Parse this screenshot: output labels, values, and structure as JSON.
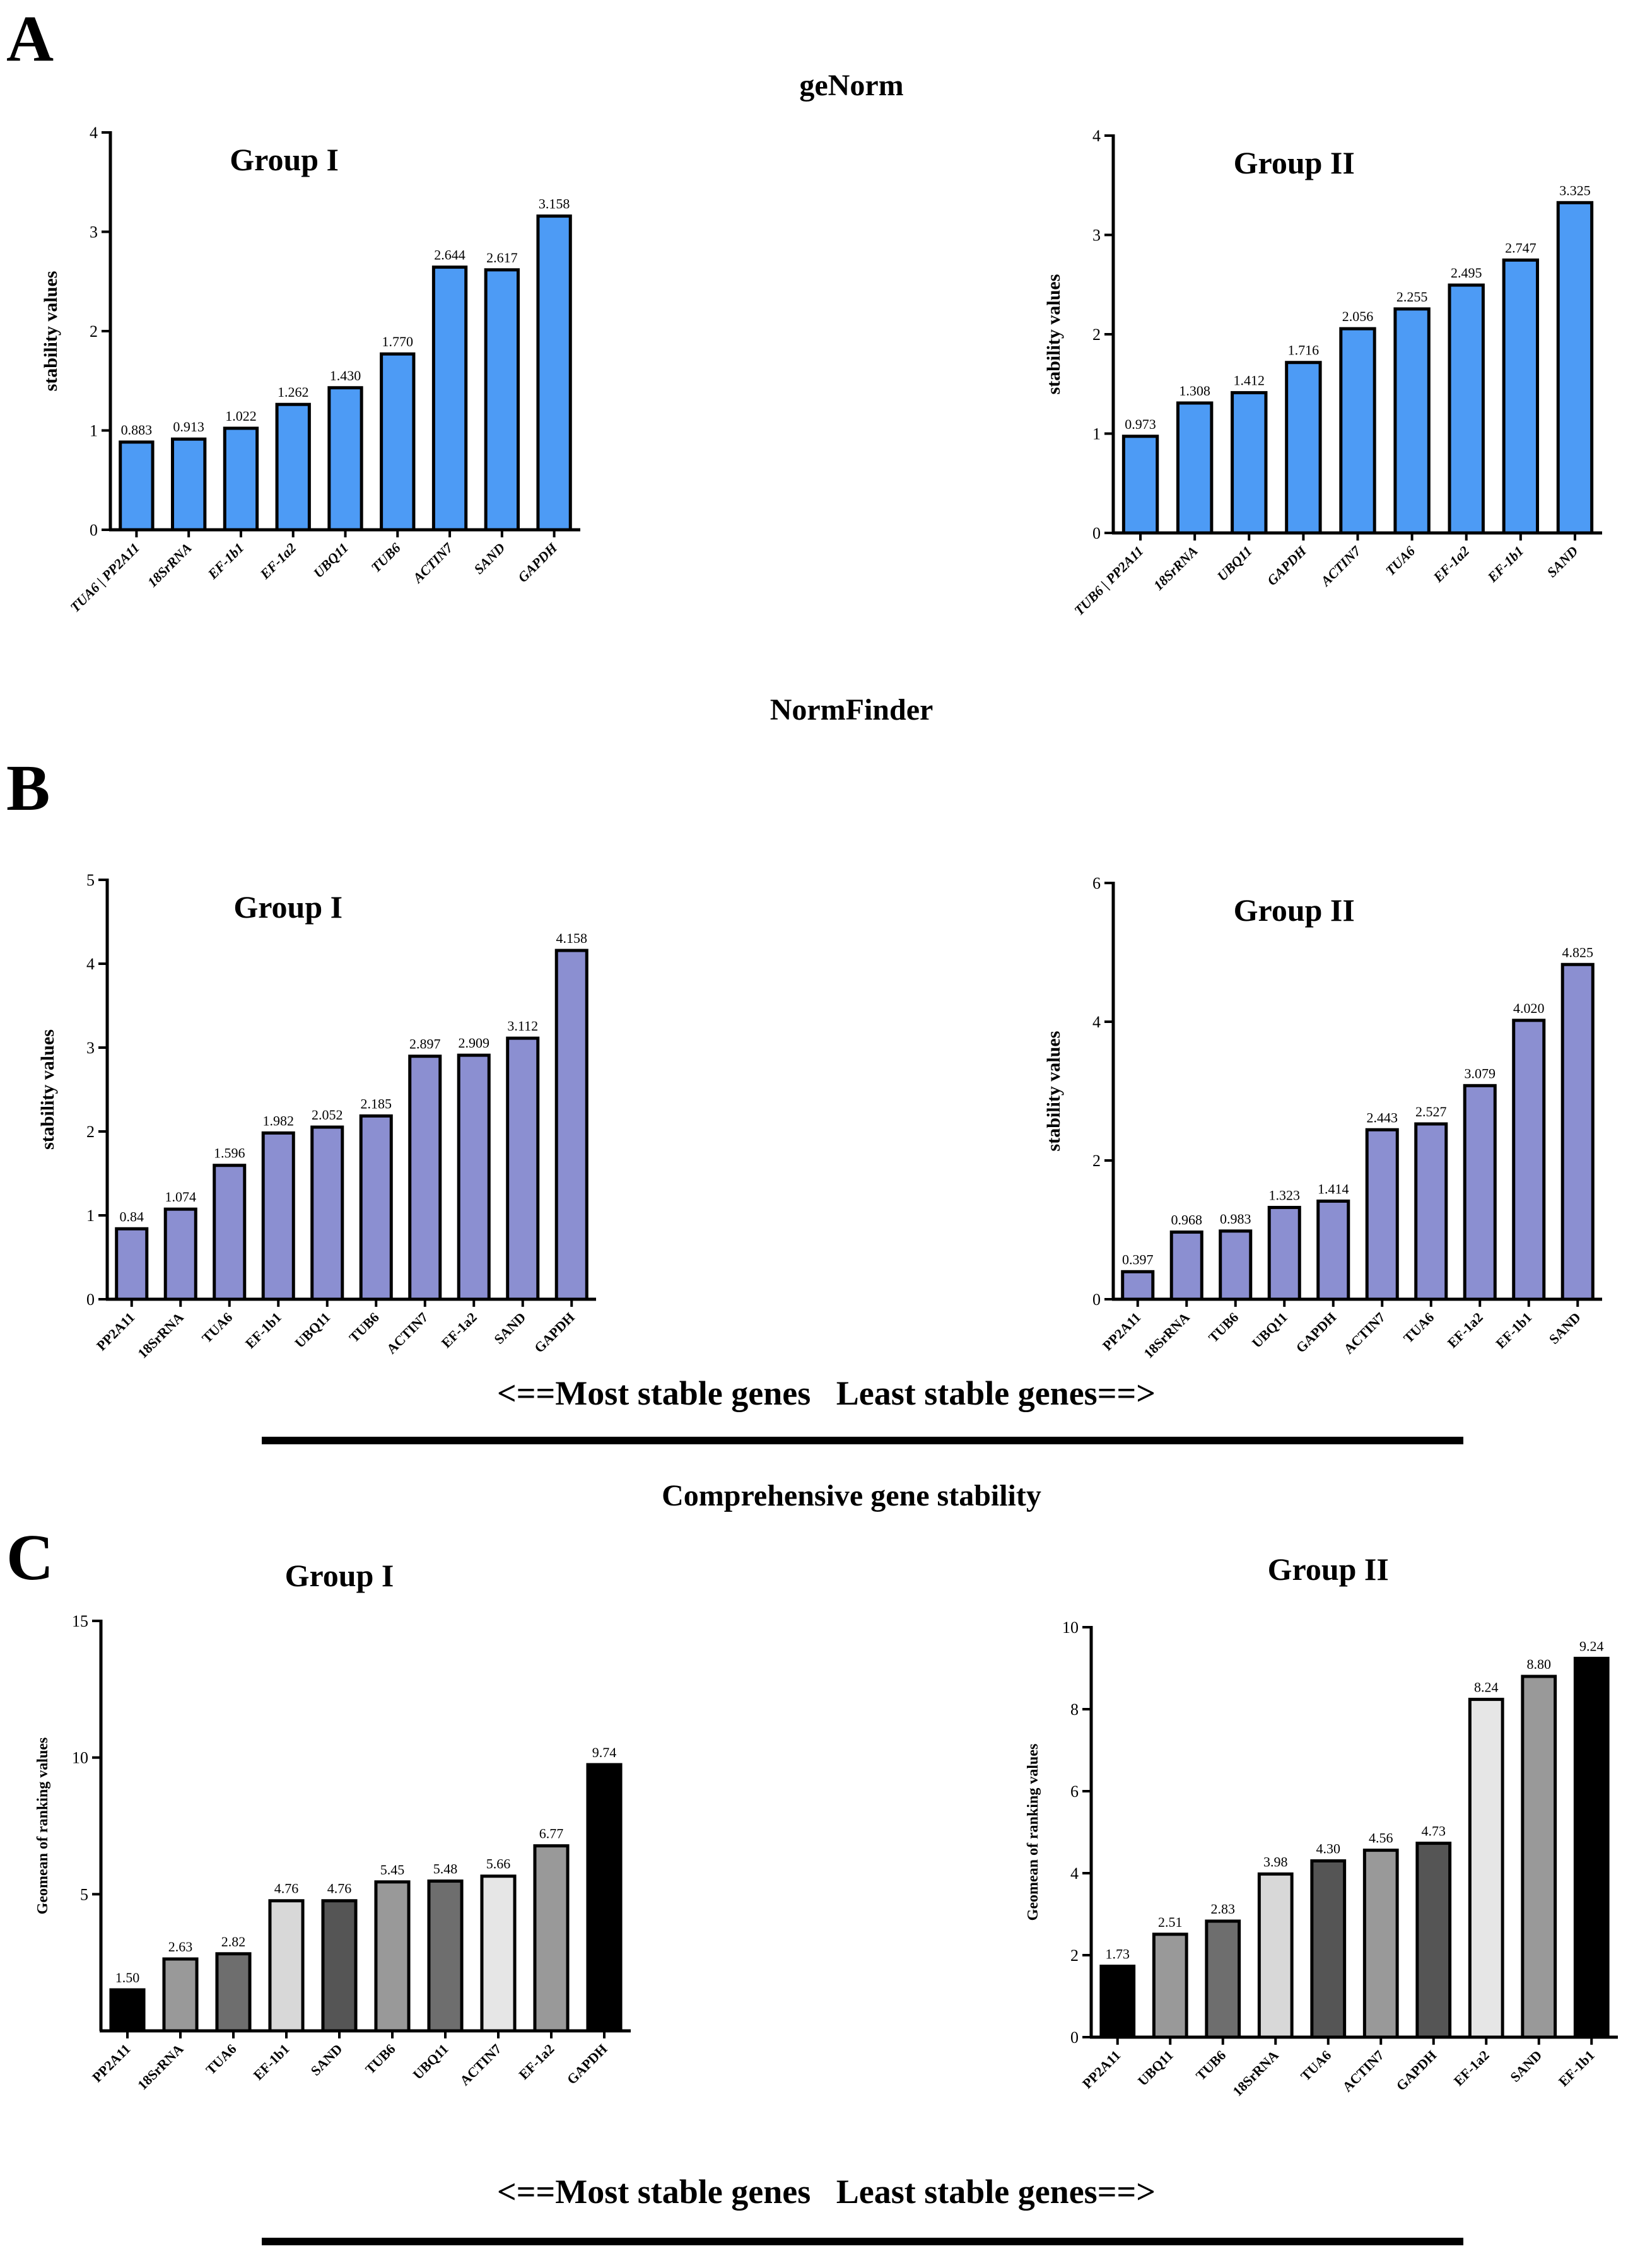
{
  "panels": {
    "A": {
      "letter": "A",
      "title": "geNorm"
    },
    "B": {
      "letter": "B",
      "title": "NormFinder"
    },
    "C": {
      "letter": "C",
      "title": "Comprehensive gene stability"
    }
  },
  "footer": {
    "stability_direction_1": "<==Most stable genes   Least stable genes==>",
    "stability_direction_2": "<==Most stable genes   Least stable genes==>"
  },
  "colors": {
    "genorm_bar": "#4d9bf5",
    "normfinder_bar": "#8b8fd1",
    "axis": "#000000"
  },
  "chart_data": [
    {
      "id": "A1",
      "type": "bar",
      "title": "Group I",
      "ylabel": "stability values",
      "xlabel": "",
      "ylim": [
        0,
        4
      ],
      "yticks": [
        0,
        1,
        2,
        3,
        4
      ],
      "italic_categories": true,
      "categories": [
        "TUA6 | PP2A11",
        "18SrRNA",
        "EF-1b1",
        "EF-1a2",
        "UBQ11",
        "TUB6",
        "ACTIN7",
        "SAND",
        "GAPDH"
      ],
      "values": [
        0.883,
        0.913,
        1.022,
        1.262,
        1.43,
        1.77,
        2.644,
        2.617,
        3.158
      ],
      "value_labels": [
        "0.883",
        "0.913",
        "1.022",
        "1.262",
        "1.430",
        "1.770",
        "2.644",
        "2.617",
        "3.158"
      ],
      "bar_colors": [
        "#4d9bf5"
      ]
    },
    {
      "id": "A2",
      "type": "bar",
      "title": "Group II",
      "ylabel": "stability values",
      "xlabel": "",
      "ylim": [
        0,
        4
      ],
      "yticks": [
        0,
        1,
        2,
        3,
        4
      ],
      "italic_categories": true,
      "categories": [
        "TUB6 | PP2A11",
        "18SrRNA",
        "UBQ11",
        "GAPDH",
        "ACTIN7",
        "TUA6",
        "EF-1a2",
        "EF-1b1",
        "SAND"
      ],
      "values": [
        0.973,
        1.308,
        1.412,
        1.716,
        2.056,
        2.255,
        2.495,
        2.747,
        3.325
      ],
      "value_labels": [
        "0.973",
        "1.308",
        "1.412",
        "1.716",
        "2.056",
        "2.255",
        "2.495",
        "2.747",
        "3.325"
      ],
      "bar_colors": [
        "#4d9bf5"
      ]
    },
    {
      "id": "B1",
      "type": "bar",
      "title": "Group I",
      "ylabel": "stability values",
      "xlabel": "",
      "ylim": [
        0,
        5
      ],
      "yticks": [
        0,
        1,
        2,
        3,
        4,
        5
      ],
      "italic_categories": false,
      "categories": [
        "PP2A11",
        "18SrRNA",
        "TUA6",
        "EF-1b1",
        "UBQ11",
        "TUB6",
        "ACTIN7",
        "EF-1a2",
        "SAND",
        "GAPDH"
      ],
      "values": [
        0.84,
        1.074,
        1.596,
        1.982,
        2.052,
        2.185,
        2.897,
        2.909,
        3.112,
        4.158
      ],
      "value_labels": [
        "0.84",
        "1.074",
        "1.596",
        "1.982",
        "2.052",
        "2.185",
        "2.897",
        "2.909",
        "3.112",
        "4.158"
      ],
      "bar_colors": [
        "#8b8fd1"
      ]
    },
    {
      "id": "B2",
      "type": "bar",
      "title": "Group II",
      "ylabel": "stability values",
      "xlabel": "",
      "ylim": [
        0,
        6
      ],
      "yticks": [
        0,
        2,
        4,
        6
      ],
      "italic_categories": false,
      "categories": [
        "PP2A11",
        "18SrRNA",
        "TUB6",
        "UBQ11",
        "GAPDH",
        "ACTIN7",
        "TUA6",
        "EF-1a2",
        "EF-1b1",
        "SAND"
      ],
      "values": [
        0.397,
        0.968,
        0.983,
        1.323,
        1.414,
        2.443,
        2.527,
        3.079,
        4.02,
        4.825
      ],
      "value_labels": [
        "0.397",
        "0.968",
        "0.983",
        "1.323",
        "1.414",
        "2.443",
        "2.527",
        "3.079",
        "4.020",
        "4.825"
      ],
      "bar_colors": [
        "#8b8fd1"
      ]
    },
    {
      "id": "C1",
      "type": "bar",
      "title": "Group I",
      "ylabel": "Geomean of ranking values",
      "xlabel": "",
      "ylim": [
        0,
        15
      ],
      "yticks": [
        5,
        10,
        15
      ],
      "italic_categories": false,
      "categories": [
        "PP2A11",
        "18SrRNA",
        "TUA6",
        "EF-1b1",
        "SAND",
        "TUB6",
        "UBQ11",
        "ACTIN7",
        "EF-1a2",
        "GAPDH"
      ],
      "values": [
        1.5,
        2.63,
        2.82,
        4.76,
        4.76,
        5.45,
        5.48,
        5.66,
        6.77,
        9.74
      ],
      "value_labels": [
        "1.50",
        "2.63",
        "2.82",
        "4.76",
        "4.76",
        "5.45",
        "5.48",
        "5.66",
        "6.77",
        "9.74"
      ],
      "bar_colors": [
        "#000000",
        "#999999",
        "#6e6e6e",
        "#d8d8d8",
        "#555555",
        "#999999",
        "#6e6e6e",
        "#e6e6e6",
        "#999999",
        "#000000"
      ]
    },
    {
      "id": "C2",
      "type": "bar",
      "title": "Group II",
      "ylabel": "Geomean of ranking values",
      "xlabel": "",
      "ylim": [
        0,
        10
      ],
      "yticks": [
        0,
        2,
        4,
        6,
        8,
        10
      ],
      "italic_categories": false,
      "categories": [
        "PP2A11",
        "UBQ11",
        "TUB6",
        "18SrRNA",
        "TUA6",
        "ACTIN7",
        "GAPDH",
        "EF-1a2",
        "SAND",
        "EF-1b1"
      ],
      "values": [
        1.73,
        2.51,
        2.83,
        3.98,
        4.3,
        4.56,
        4.73,
        8.24,
        8.8,
        9.24
      ],
      "value_labels": [
        "1.73",
        "2.51",
        "2.83",
        "3.98",
        "4.30",
        "4.56",
        "4.73",
        "8.24",
        "8.80",
        "9.24"
      ],
      "bar_colors": [
        "#000000",
        "#999999",
        "#6e6e6e",
        "#d8d8d8",
        "#555555",
        "#999999",
        "#555555",
        "#e6e6e6",
        "#999999",
        "#000000"
      ]
    }
  ]
}
